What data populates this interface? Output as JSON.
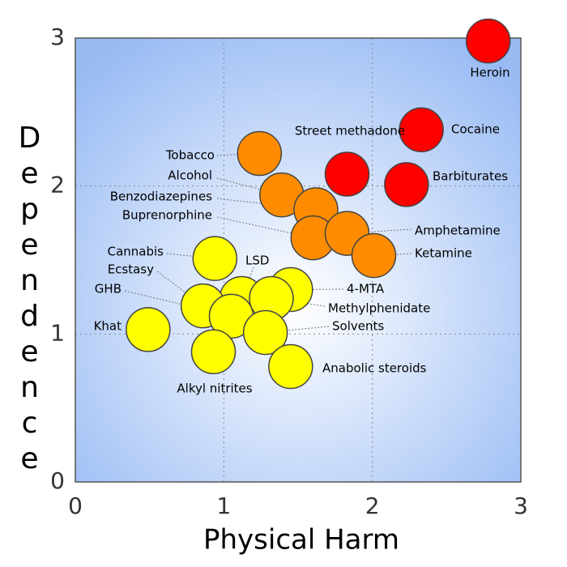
{
  "chart_data": {
    "type": "scatter",
    "x_label": "Physical Harm",
    "y_label": "Dependence",
    "labels": [
      "Heroin",
      "Cocaine",
      "Street methadone",
      "Barbiturates",
      "Tobacco",
      "Alcohol",
      "Benzodiazepines",
      "Buprenorphine",
      "Amphetamine",
      "Ketamine",
      "Cannabis",
      "LSD",
      "4-MTA",
      "Methylphenidate",
      "Ecstasy",
      "GHB",
      "Solvents",
      "Khat",
      "Alkyl nitrites",
      "Anabolic steroids"
    ],
    "x": [
      2.78,
      2.33,
      1.83,
      2.23,
      1.24,
      1.39,
      1.62,
      1.6,
      1.83,
      2.01,
      0.94,
      1.12,
      1.45,
      1.32,
      0.86,
      1.05,
      1.28,
      0.49,
      0.93,
      1.45
    ],
    "values": [
      2.98,
      2.38,
      2.08,
      2.01,
      2.22,
      1.94,
      1.84,
      1.65,
      1.68,
      1.53,
      1.51,
      1.24,
      1.3,
      1.24,
      1.19,
      1.12,
      1.01,
      1.03,
      0.88,
      0.78
    ],
    "colors": [
      "#ff0000",
      "#ff0000",
      "#ff0000",
      "#ff0000",
      "#ff8c00",
      "#ff8c00",
      "#ff8c00",
      "#ff8c00",
      "#ff8c00",
      "#ff8c00",
      "#ffff00",
      "#ffff00",
      "#ffff00",
      "#ffff00",
      "#ffff00",
      "#ffff00",
      "#ffff00",
      "#ffff00",
      "#ffff00",
      "#ffff00"
    ],
    "xlim": [
      0,
      3
    ],
    "ylim": [
      0,
      3
    ],
    "xticks": [
      0,
      1,
      2,
      3
    ],
    "yticks": [
      0,
      1,
      2,
      3
    ],
    "grid": true
  }
}
